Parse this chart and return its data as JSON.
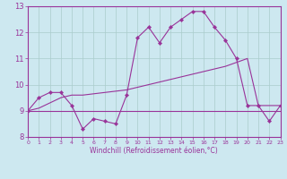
{
  "xlabel": "Windchill (Refroidissement éolien,°C)",
  "background_color": "#cde8f0",
  "grid_color": "#aacccc",
  "line_color": "#993399",
  "hours": [
    0,
    1,
    2,
    3,
    4,
    5,
    6,
    7,
    8,
    9,
    10,
    11,
    12,
    13,
    14,
    15,
    16,
    17,
    18,
    19,
    20,
    21,
    22,
    23
  ],
  "s1": [
    9.0,
    9.5,
    9.7,
    9.7,
    9.2,
    8.3,
    8.7,
    8.6,
    8.5,
    9.6,
    11.8,
    12.2,
    11.6,
    12.2,
    12.5,
    12.8,
    12.8,
    12.2,
    11.7,
    11.0,
    9.2,
    9.2,
    8.6,
    9.2
  ],
  "s2": [
    9.0,
    9.1,
    9.3,
    9.5,
    9.6,
    9.6,
    9.65,
    9.7,
    9.75,
    9.8,
    9.9,
    10.0,
    10.1,
    10.2,
    10.3,
    10.4,
    10.5,
    10.6,
    10.7,
    10.85,
    11.0,
    9.2,
    9.2,
    9.2
  ],
  "s3": [
    9.0,
    9.0,
    9.0,
    9.0,
    9.0,
    9.0,
    9.0,
    9.0,
    9.0,
    9.0,
    9.0,
    9.0,
    9.0,
    9.0,
    9.0,
    9.0,
    9.0,
    9.0,
    9.0,
    9.0,
    9.0,
    9.0,
    9.0,
    9.0
  ],
  "ylim": [
    8.0,
    13.0
  ],
  "xlim": [
    0,
    23
  ],
  "xticks": [
    0,
    1,
    2,
    3,
    4,
    5,
    6,
    7,
    8,
    9,
    10,
    11,
    12,
    13,
    14,
    15,
    16,
    17,
    18,
    19,
    20,
    21,
    22,
    23
  ],
  "yticks": [
    8,
    9,
    10,
    11,
    12,
    13
  ]
}
